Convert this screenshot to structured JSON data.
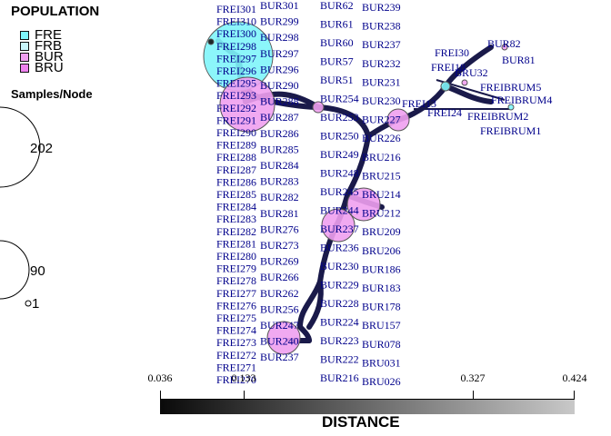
{
  "legend": {
    "title": "POPULATION",
    "items": [
      {
        "label": "FRE",
        "color": "#7ff5fa"
      },
      {
        "label": "FRB",
        "color": "#c8f5fa"
      },
      {
        "label": "BUR",
        "color": "#f0a0f0"
      },
      {
        "label": "BRU",
        "color": "#ee82ee"
      }
    ]
  },
  "size_legend": {
    "title": "Samples/Node",
    "values": [
      "202",
      "90",
      "1"
    ]
  },
  "distance_scale": {
    "title": "DISTANCE",
    "ticks": [
      "0.036",
      "0.133",
      "0.327",
      "0.424"
    ]
  },
  "colors": {
    "edge": "#1a1a4a",
    "node_label": "#00008b",
    "fre": "#7ff5fa",
    "bur": "#f0a0f0"
  },
  "node_labels": {
    "left_column": [
      "FREI301",
      "FREI310",
      "FREI300",
      "FREI298",
      "FREI297",
      "FREI296",
      "FREI295",
      "FREI293",
      "FREI292",
      "FREI291",
      "FREI290",
      "FREI289",
      "FREI288",
      "FREI287",
      "FREI286",
      "FREI285",
      "FREI284",
      "FREI283",
      "FREI282",
      "FREI281",
      "FREI280",
      "FREI279",
      "FREI278",
      "FREI277",
      "FREI276",
      "FREI275",
      "FREI274",
      "FREI273",
      "FREI272",
      "FREI271",
      "FREI270"
    ],
    "bur_column": [
      "BUR301",
      "BUR299",
      "BUR298",
      "BUR297",
      "BUR296",
      "BUR290",
      "BUR288",
      "BUR287",
      "BUR286",
      "BUR285",
      "BUR284",
      "BUR283",
      "BUR282",
      "BUR281",
      "BUR276",
      "BUR273",
      "BUR269",
      "BUR266",
      "BUR262",
      "BUR256",
      "BUR247",
      "BUR240",
      "BUR237"
    ],
    "center_column": [
      "BUR62",
      "BUR61",
      "BUR60",
      "BUR57",
      "BUR51",
      "BUR254",
      "BUR253",
      "BUR250",
      "BUR249",
      "BUR248",
      "BUR245",
      "BUR244",
      "BUR237",
      "BUR236",
      "BUR230",
      "BUR229",
      "BUR228",
      "BUR224",
      "BUR223",
      "BUR222",
      "BUR216"
    ],
    "right_column": [
      "BUR239",
      "BUR238",
      "BUR237",
      "BUR232",
      "BUR231",
      "BUR230",
      "BUR227",
      "BUR226",
      "BRU216",
      "BRU215",
      "BRU214",
      "BRU212",
      "BRU209",
      "BRU206",
      "BUR186",
      "BUR183",
      "BUR178",
      "BRU157",
      "BUR078",
      "BRU031",
      "BRU026"
    ],
    "far_right": [
      "BUR82",
      "FREI30",
      "BUR81",
      "FREI18",
      "BRU32",
      "FREIBRUM5",
      "FREIBRUM4",
      "FREIBRUM2",
      "FREIBRUM1",
      "FREI24",
      "FREI13"
    ]
  }
}
